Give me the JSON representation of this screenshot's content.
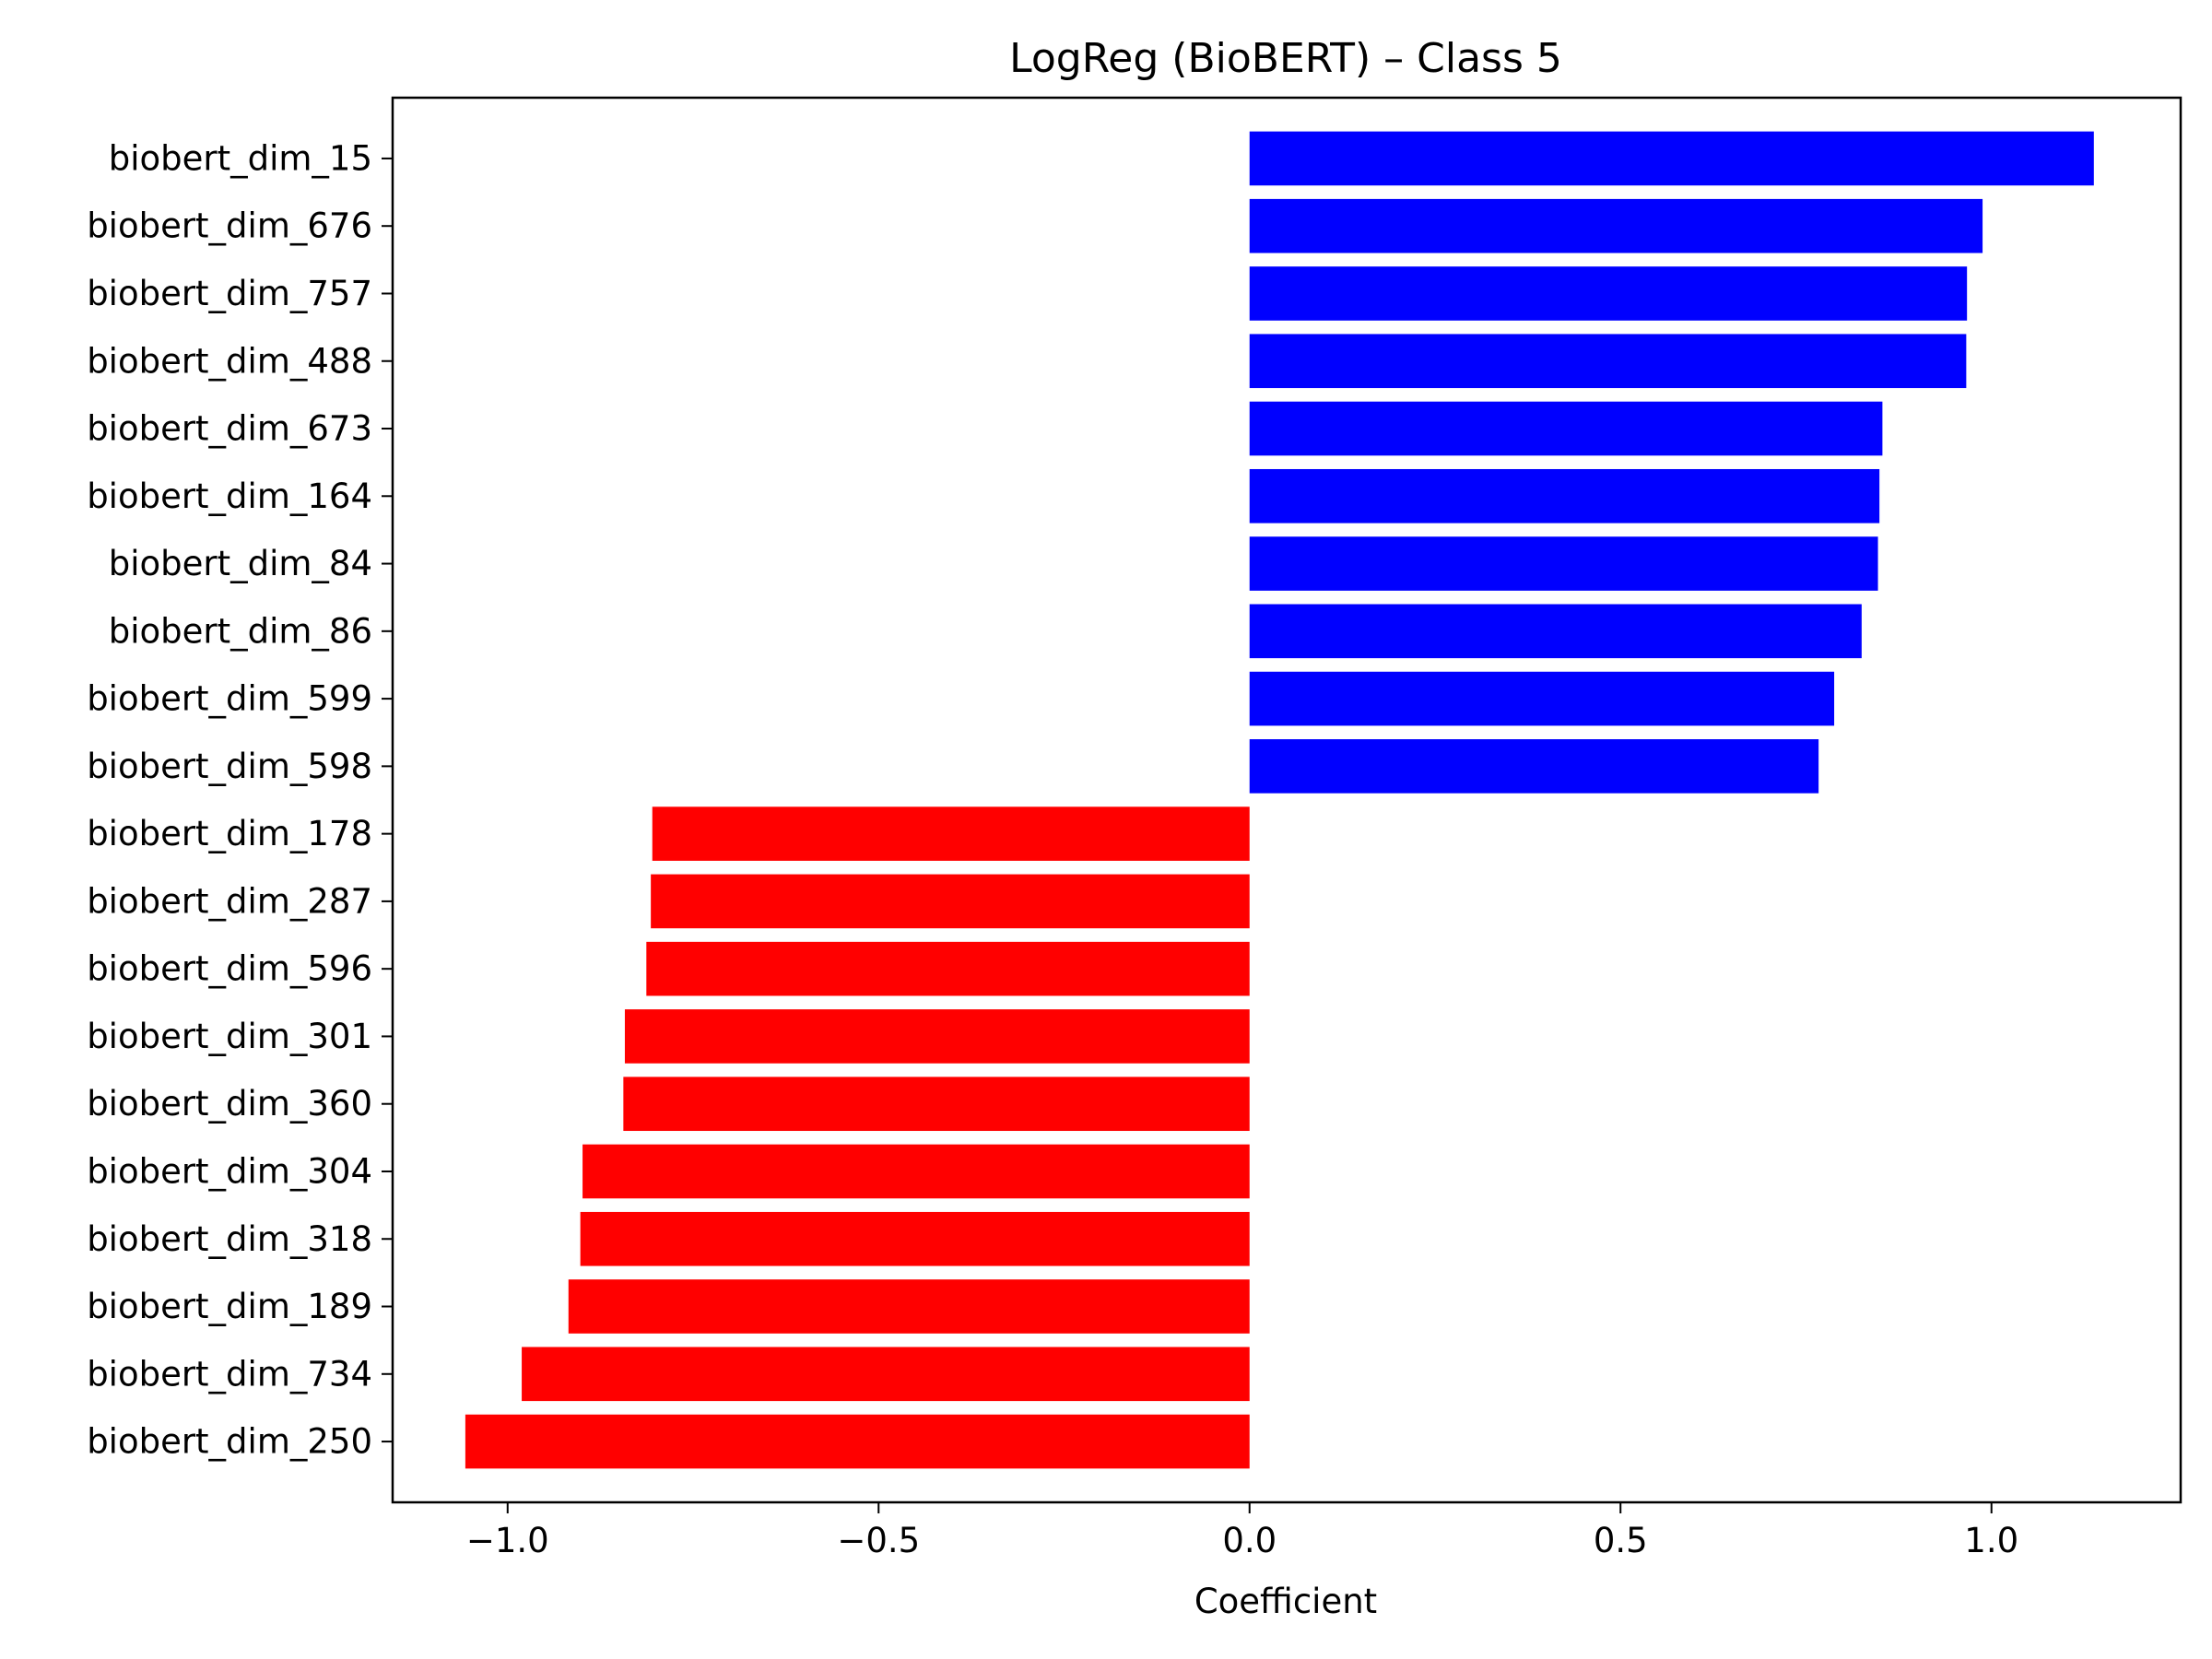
{
  "chart_data": {
    "type": "bar",
    "orientation": "horizontal",
    "title": "LogReg (BioBERT) – Class 5",
    "xlabel": "Coefficient",
    "ylabel": "",
    "xlim": [
      -1.155,
      1.255
    ],
    "xticks": [
      {
        "value": -1.0,
        "label": "−1.0"
      },
      {
        "value": -0.5,
        "label": "−0.5"
      },
      {
        "value": 0.0,
        "label": "0.0"
      },
      {
        "value": 0.5,
        "label": "0.5"
      },
      {
        "value": 1.0,
        "label": "1.0"
      }
    ],
    "grid": false,
    "colors": {
      "positive": "#0000ff",
      "negative": "#ff0000"
    },
    "categories": [
      "biobert_dim_15",
      "biobert_dim_676",
      "biobert_dim_757",
      "biobert_dim_488",
      "biobert_dim_673",
      "biobert_dim_164",
      "biobert_dim_84",
      "biobert_dim_86",
      "biobert_dim_599",
      "biobert_dim_598",
      "biobert_dim_178",
      "biobert_dim_287",
      "biobert_dim_596",
      "biobert_dim_301",
      "biobert_dim_360",
      "biobert_dim_304",
      "biobert_dim_318",
      "biobert_dim_189",
      "biobert_dim_734",
      "biobert_dim_250"
    ],
    "values": [
      1.138,
      0.988,
      0.967,
      0.966,
      0.853,
      0.849,
      0.847,
      0.825,
      0.788,
      0.767,
      -0.805,
      -0.807,
      -0.813,
      -0.842,
      -0.844,
      -0.899,
      -0.902,
      -0.918,
      -0.981,
      -1.057
    ]
  }
}
